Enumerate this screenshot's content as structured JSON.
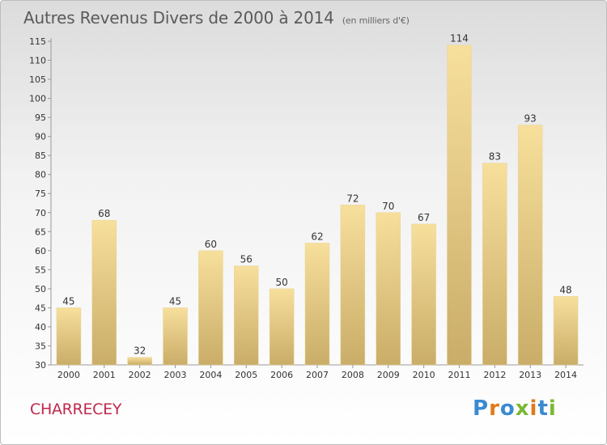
{
  "header": {
    "title": "Autres Revenus Divers de 2000 à 2014",
    "subtitle": "(en milliers d'€)"
  },
  "footer": {
    "commune": "CHARRECEY",
    "logo_text": "Proxiti"
  },
  "colors": {
    "bar_light": "#f7df9c",
    "bar_dark": "#c9ad68",
    "axis": "#999999",
    "commune": "#c0284c"
  },
  "chart_data": {
    "type": "bar",
    "title": "Autres Revenus Divers de 2000 à 2014",
    "subtitle": "(en milliers d'€)",
    "xlabel": "",
    "ylabel": "",
    "categories": [
      "2000",
      "2001",
      "2002",
      "2003",
      "2004",
      "2005",
      "2006",
      "2007",
      "2008",
      "2009",
      "2010",
      "2011",
      "2012",
      "2013",
      "2014"
    ],
    "values": [
      45,
      68,
      32,
      45,
      60,
      56,
      50,
      62,
      72,
      70,
      67,
      114,
      83,
      93,
      48
    ],
    "ylim": [
      30,
      115
    ],
    "yticks": [
      30,
      35,
      40,
      45,
      50,
      55,
      60,
      65,
      70,
      75,
      80,
      85,
      90,
      95,
      100,
      105,
      110,
      115
    ],
    "grid": false,
    "legend": "none"
  }
}
